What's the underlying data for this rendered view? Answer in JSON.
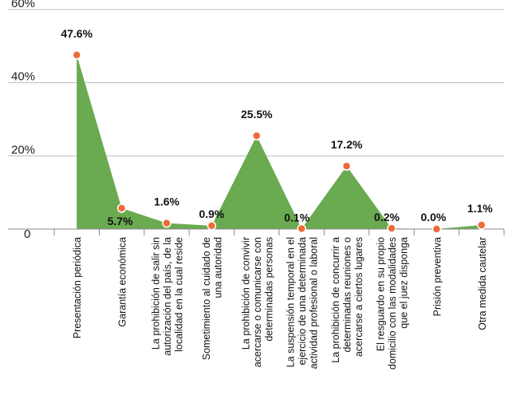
{
  "chart_data": {
    "type": "area",
    "categories": [
      [
        "Presentación periódica"
      ],
      [
        "Garantía económica"
      ],
      [
        "La prohibición de salir sin",
        "autorización del país, de la",
        "localidad en la cual reside"
      ],
      [
        "Sometimiento al cuidado de",
        "una autoridad"
      ],
      [
        "La prohibición de convivir",
        "acercarse o comunicarse con",
        "determinadas personas"
      ],
      [
        "La suspensión temporal en el",
        "ejercicio de una determinada",
        "actividad profesional o laboral"
      ],
      [
        "La prohibición de concurrir a",
        "determinadas reuniones o",
        "acercarse a ciertos lugares"
      ],
      [
        "El resguardo en su propio",
        "domicilio con las modalidades",
        "que el juez disponga"
      ],
      [
        "Prisión preventiva"
      ],
      [
        "Otra medida cautelar"
      ]
    ],
    "values": [
      47.6,
      5.7,
      1.6,
      0.9,
      25.5,
      0.1,
      17.2,
      0.2,
      0.0,
      1.1
    ],
    "data_labels": [
      "47.6%",
      "5.7%",
      "1.6%",
      "0.9%",
      "25.5%",
      "0.1%",
      "17.2%",
      "0.2%",
      "0.0%",
      "1.1%"
    ],
    "y_ticks": [
      {
        "value": 60,
        "label": "60%"
      },
      {
        "value": 40,
        "label": "40%"
      },
      {
        "value": 20,
        "label": "20%"
      },
      {
        "value": 0,
        "label": "0"
      }
    ],
    "ylim": [
      0,
      60
    ],
    "grid": true,
    "colors": {
      "area": "#6aaa50",
      "marker": "#ee6b36",
      "grid": "#bdbdbd"
    }
  }
}
